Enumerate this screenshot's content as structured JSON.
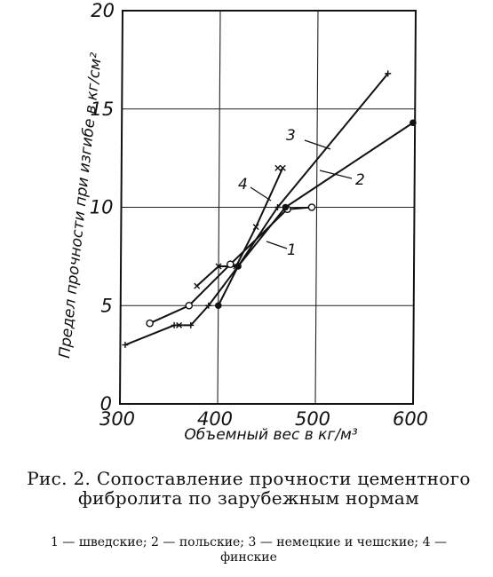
{
  "chart_data": {
    "type": "line",
    "xlabel": "Объемный вес в кг/м³",
    "ylabel": "Предел прочности при изгибе в кг/см²",
    "xlim": [
      300,
      600
    ],
    "ylim": [
      0,
      20
    ],
    "x_ticks": [
      300,
      400,
      500,
      600
    ],
    "y_ticks": [
      0,
      5,
      10,
      15,
      20
    ],
    "grid": true,
    "series": [
      {
        "name": "1",
        "marker": "open-circle",
        "x": [
          330,
          370,
          412,
          470,
          495
        ],
        "y": [
          4.1,
          5.0,
          7.1,
          9.9,
          10.0
        ]
      },
      {
        "name": "2",
        "marker": "filled-circle",
        "x": [
          400,
          420,
          468,
          598
        ],
        "y": [
          5.0,
          7.0,
          10.0,
          14.3
        ]
      },
      {
        "name": "3",
        "marker": "plus",
        "x": [
          305,
          355,
          372,
          390,
          420,
          460,
          572
        ],
        "y": [
          3.0,
          4.0,
          4.0,
          5.0,
          7.0,
          10.0,
          16.8
        ]
      },
      {
        "name": "4",
        "marker": "x",
        "x": [
          378,
          400,
          418,
          438,
          465
        ],
        "y": [
          6.0,
          7.0,
          7.0,
          9.0,
          12.0
        ]
      }
    ],
    "marks": [
      {
        "x": 360,
        "y": 4.0,
        "marker": "x"
      },
      {
        "x": 460,
        "y": 12.0,
        "marker": "x"
      }
    ]
  },
  "caption": {
    "title": "Рис. 2. Сопоставление прочности цементного фибролита по зарубежным нормам",
    "legend": "1 — шведские; 2 — польские; 3 — немецкие и чешские; 4 — финские"
  }
}
